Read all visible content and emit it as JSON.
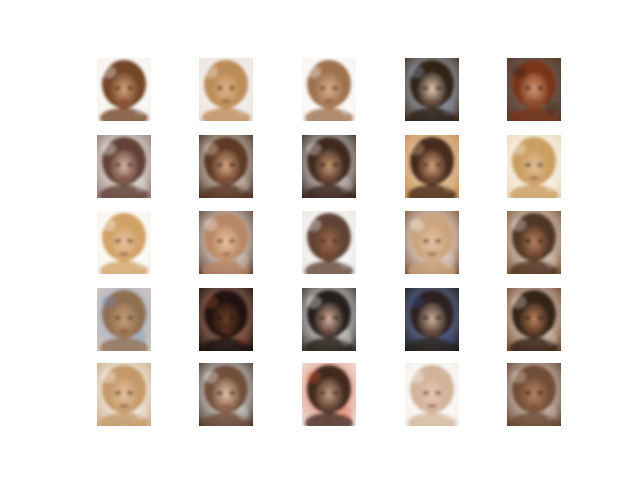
{
  "figure": {
    "background": "#ffffff",
    "rows": 5,
    "cols": 5,
    "tiles": [
      {
        "row": 0,
        "col": 0,
        "bg": "#f4efe9",
        "hair": "#6b3b1c",
        "skin": "#d9a57e",
        "accent": "#ffffff",
        "dark": false
      },
      {
        "row": 0,
        "col": 1,
        "bg": "#e9e1d8",
        "hair": "#b8864f",
        "skin": "#e1b48b",
        "accent": "#f3f3f3",
        "dark": false
      },
      {
        "row": 0,
        "col": 2,
        "bg": "#f6f2ee",
        "hair": "#9a6a44",
        "skin": "#d8b090",
        "accent": "#ffffff",
        "dark": false
      },
      {
        "row": 0,
        "col": 3,
        "bg": "#3a2616",
        "hair": "#2a1a10",
        "skin": "#e6cdb4",
        "accent": "#8ea9c9",
        "dark": true
      },
      {
        "row": 0,
        "col": 4,
        "bg": "#5a3522",
        "hair": "#7a3418",
        "skin": "#d59a72",
        "accent": "#241a14",
        "dark": true
      },
      {
        "row": 1,
        "col": 0,
        "bg": "#8a7068",
        "hair": "#5c3a2e",
        "skin": "#dcb6a4",
        "accent": "#ffffff",
        "dark": false
      },
      {
        "row": 1,
        "col": 1,
        "bg": "#3b2518",
        "hair": "#5a3320",
        "skin": "#d7a983",
        "accent": "#f2e3d2",
        "dark": true
      },
      {
        "row": 1,
        "col": 2,
        "bg": "#2a1c14",
        "hair": "#3a2418",
        "skin": "#c99a74",
        "accent": "#f4eee8",
        "dark": true
      },
      {
        "row": 1,
        "col": 3,
        "bg": "#c48a52",
        "hair": "#3e2216",
        "skin": "#d9a47a",
        "accent": "#e6c090",
        "dark": false
      },
      {
        "row": 1,
        "col": 4,
        "bg": "#e8d7bd",
        "hair": "#c79a5a",
        "skin": "#e2bc97",
        "accent": "#fff7ec",
        "dark": false
      },
      {
        "row": 2,
        "col": 0,
        "bg": "#f6f1ea",
        "hair": "#cf9d5e",
        "skin": "#e7c3a3",
        "accent": "#ffffff",
        "dark": false
      },
      {
        "row": 2,
        "col": 1,
        "bg": "#5a3b2a",
        "hair": "#b88461",
        "skin": "#e8c2a3",
        "accent": "#f7efe7",
        "dark": false
      },
      {
        "row": 2,
        "col": 2,
        "bg": "#e7e3df",
        "hair": "#5a3a2a",
        "skin": "#9e6e4f",
        "accent": "#ffffff",
        "dark": false
      },
      {
        "row": 2,
        "col": 3,
        "bg": "#7a4a2c",
        "hair": "#caa27a",
        "skin": "#e4c1a0",
        "accent": "#ffffff",
        "dark": false
      },
      {
        "row": 2,
        "col": 4,
        "bg": "#7a5030",
        "hair": "#4a2e1c",
        "skin": "#b98462",
        "accent": "#efe6dc",
        "dark": true
      },
      {
        "row": 3,
        "col": 0,
        "bg": "#d8c9b6",
        "hair": "#8f6b4c",
        "skin": "#c8a07a",
        "accent": "#6b88b8",
        "dark": false
      },
      {
        "row": 3,
        "col": 1,
        "bg": "#0f0b09",
        "hair": "#1b120d",
        "skin": "#6f3f24",
        "accent": "#a54a2a",
        "dark": true
      },
      {
        "row": 3,
        "col": 2,
        "bg": "#2e2520",
        "hair": "#1f1813",
        "skin": "#e0b6a1",
        "accent": "#ffffff",
        "dark": true
      },
      {
        "row": 3,
        "col": 3,
        "bg": "#1a1412",
        "hair": "#2a1f1b",
        "skin": "#d7b39a",
        "accent": "#2f4e9a",
        "dark": true
      },
      {
        "row": 3,
        "col": 4,
        "bg": "#6b3e24",
        "hair": "#2b1a12",
        "skin": "#c3865e",
        "accent": "#f0dfcf",
        "dark": true
      },
      {
        "row": 4,
        "col": 0,
        "bg": "#c9a780",
        "hair": "#c29664",
        "skin": "#e4c09f",
        "accent": "#ffffff",
        "dark": false
      },
      {
        "row": 4,
        "col": 1,
        "bg": "#3a2a20",
        "hair": "#6e4a34",
        "skin": "#e6c2a8",
        "accent": "#ffffff",
        "dark": true
      },
      {
        "row": 4,
        "col": 2,
        "bg": "#f2ebe6",
        "hair": "#3a2418",
        "skin": "#caa087",
        "accent": "#d34b2a",
        "dark": false
      },
      {
        "row": 4,
        "col": 3,
        "bg": "#f2ece6",
        "hair": "#d0b095",
        "skin": "#e5c7b2",
        "accent": "#ffffff",
        "dark": false
      },
      {
        "row": 4,
        "col": 4,
        "bg": "#5b3a28",
        "hair": "#6e4a34",
        "skin": "#b78462",
        "accent": "#e8d6c6",
        "dark": true
      }
    ]
  }
}
